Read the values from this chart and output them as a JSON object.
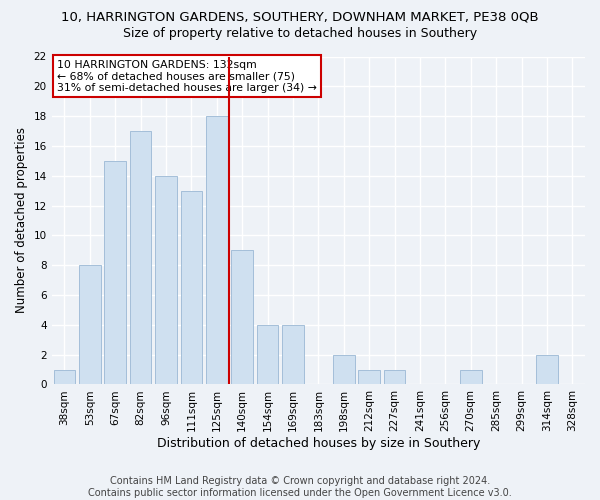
{
  "title": "10, HARRINGTON GARDENS, SOUTHERY, DOWNHAM MARKET, PE38 0QB",
  "subtitle": "Size of property relative to detached houses in Southery",
  "xlabel": "Distribution of detached houses by size in Southery",
  "ylabel": "Number of detached properties",
  "categories": [
    "38sqm",
    "53sqm",
    "67sqm",
    "82sqm",
    "96sqm",
    "111sqm",
    "125sqm",
    "140sqm",
    "154sqm",
    "169sqm",
    "183sqm",
    "198sqm",
    "212sqm",
    "227sqm",
    "241sqm",
    "256sqm",
    "270sqm",
    "285sqm",
    "299sqm",
    "314sqm",
    "328sqm"
  ],
  "values": [
    1,
    8,
    15,
    17,
    14,
    13,
    18,
    9,
    4,
    4,
    0,
    2,
    1,
    1,
    0,
    0,
    1,
    0,
    0,
    2,
    0
  ],
  "bar_color": "#cfe0f0",
  "bar_edge_color": "#9ab8d4",
  "ylim": [
    0,
    22
  ],
  "yticks": [
    0,
    2,
    4,
    6,
    8,
    10,
    12,
    14,
    16,
    18,
    20,
    22
  ],
  "ref_line_x": 6.5,
  "ref_line_color": "#cc0000",
  "annotation_lines": [
    "10 HARRINGTON GARDENS: 132sqm",
    "← 68% of detached houses are smaller (75)",
    "31% of semi-detached houses are larger (34) →"
  ],
  "footer_line1": "Contains HM Land Registry data © Crown copyright and database right 2024.",
  "footer_line2": "Contains public sector information licensed under the Open Government Licence v3.0.",
  "bg_color": "#eef2f7",
  "plot_bg_color": "#eef2f7",
  "grid_color": "#ffffff",
  "title_fontsize": 9.5,
  "subtitle_fontsize": 9,
  "ylabel_fontsize": 8.5,
  "xlabel_fontsize": 9,
  "tick_fontsize": 7.5,
  "ann_fontsize": 7.8,
  "footer_fontsize": 7
}
